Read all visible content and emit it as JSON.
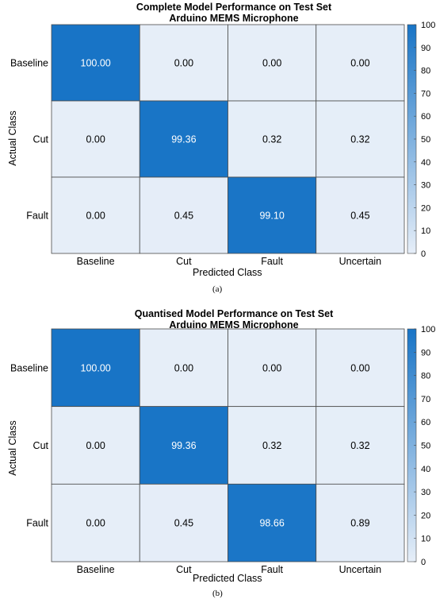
{
  "chart_data": [
    {
      "type": "heatmap",
      "title": "Complete Model Performance on Test Set",
      "subtitle": "Arduino MEMS Microphone",
      "xlabel": "Predicted Class",
      "ylabel": "Actual Class",
      "x_categories": [
        "Baseline",
        "Cut",
        "Fault",
        "Uncertain"
      ],
      "y_categories": [
        "Baseline",
        "Cut",
        "Fault"
      ],
      "values": [
        [
          100.0,
          0.0,
          0.0,
          0.0
        ],
        [
          0.0,
          99.36,
          0.32,
          0.32
        ],
        [
          0.0,
          0.45,
          99.1,
          0.45
        ]
      ],
      "value_labels": [
        [
          "100.00",
          "0.00",
          "0.00",
          "0.00"
        ],
        [
          "0.00",
          "99.36",
          "0.32",
          "0.32"
        ],
        [
          "0.00",
          "0.45",
          "99.10",
          "0.45"
        ]
      ],
      "colorbar": {
        "min": 0,
        "max": 100,
        "ticks": [
          "0",
          "10",
          "20",
          "30",
          "40",
          "50",
          "60",
          "70",
          "80",
          "90",
          "100"
        ]
      },
      "colors": {
        "low": "#e6eef8",
        "high": "#1874c6"
      },
      "caption": "(a)"
    },
    {
      "type": "heatmap",
      "title": "Quantised Model Performance on Test Set",
      "subtitle": "Arduino MEMS Microphone",
      "xlabel": "Predicted Class",
      "ylabel": "Actual Class",
      "x_categories": [
        "Baseline",
        "Cut",
        "Fault",
        "Uncertain"
      ],
      "y_categories": [
        "Baseline",
        "Cut",
        "Fault"
      ],
      "values": [
        [
          100.0,
          0.0,
          0.0,
          0.0
        ],
        [
          0.0,
          99.36,
          0.32,
          0.32
        ],
        [
          0.0,
          0.45,
          98.66,
          0.89
        ]
      ],
      "value_labels": [
        [
          "100.00",
          "0.00",
          "0.00",
          "0.00"
        ],
        [
          "0.00",
          "99.36",
          "0.32",
          "0.32"
        ],
        [
          "0.00",
          "0.45",
          "98.66",
          "0.89"
        ]
      ],
      "colorbar": {
        "min": 0,
        "max": 100,
        "ticks": [
          "0",
          "10",
          "20",
          "30",
          "40",
          "50",
          "60",
          "70",
          "80",
          "90",
          "100"
        ]
      },
      "colors": {
        "low": "#e6eef8",
        "high": "#1874c6"
      },
      "caption": "(b)"
    }
  ]
}
